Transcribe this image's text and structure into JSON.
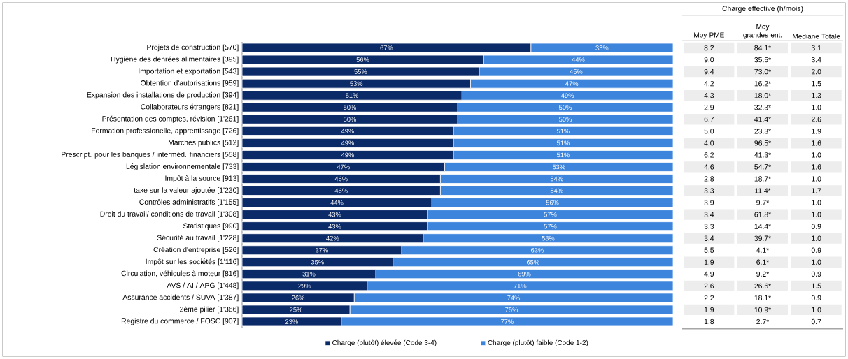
{
  "chart_data": [
    {
      "type": "bar",
      "orientation": "horizontal",
      "stacked": true,
      "legend": "bottom",
      "xlim": [
        0,
        100
      ],
      "categories": [
        "Projets de construction [570]",
        "Hygiène des denrées alimentaires [395]",
        "Importation et exportation [543]",
        "Obtention d'autorisations [959]",
        "Expansion des installations de production [394]",
        "Collaborateurs étrangers [821]",
        "Présentation des comptes, révision [1'261]",
        "Formation professionelle, apprentissage [726]",
        "Marchés publics [512]",
        "Prescript. pour les banques / interméd. financiers [558]",
        "Législation environnementale [733]",
        "Impôt à la source [913]",
        "taxe sur la valeur ajoutée [1'230]",
        "Contrôles administratifs [1'155]",
        "Droit du travail/ conditions de travail [1'308]",
        "Statistiques [990]",
        "Sécurité au travail [1'228]",
        "Création d'entreprise [526]",
        "Impôt sur les sociétés [1'116]",
        "Circulation, véhicules à moteur [816]",
        "AVS / AI / APG [1'448]",
        "Assurance accidents / SUVA [1'387]",
        "2ème pilier [1'366]",
        "Registre du commerce / FOSC [907]"
      ],
      "series": [
        {
          "name": "Charge (plutôt) élevée (Code 3-4)",
          "color": "#0b2a68",
          "values": [
            67,
            56,
            55,
            53,
            51,
            50,
            50,
            49,
            49,
            49,
            47,
            46,
            46,
            44,
            43,
            43,
            42,
            37,
            35,
            31,
            29,
            26,
            25,
            23
          ],
          "value_labels": [
            "67%",
            "56%",
            "55%",
            "53%",
            "51%",
            "50%",
            "50%",
            "49%",
            "49%",
            "49%",
            "47%",
            "46%",
            "46%",
            "44%",
            "43%",
            "43%",
            "42%",
            "37%",
            "35%",
            "31%",
            "29%",
            "26%",
            "25%",
            "23%"
          ]
        },
        {
          "name": "Charge (plutôt) faible (Code 1-2)",
          "color": "#3d84dc",
          "values": [
            33,
            44,
            45,
            47,
            49,
            50,
            50,
            51,
            51,
            51,
            53,
            54,
            54,
            56,
            57,
            57,
            58,
            63,
            65,
            69,
            71,
            74,
            75,
            77
          ],
          "value_labels": [
            "33%",
            "44%",
            "45%",
            "47%",
            "49%",
            "50%",
            "50%",
            "51%",
            "51%",
            "51%",
            "53%",
            "54%",
            "54%",
            "56%",
            "57%",
            "57%",
            "58%",
            "63%",
            "65%",
            "69%",
            "71%",
            "74%",
            "75%",
            "77%"
          ]
        }
      ]
    },
    {
      "type": "other",
      "title": "Charge effective (h/mois)",
      "categories": [
        "Moy PME",
        "Moy grandes ent.",
        "Médiane Totale"
      ],
      "cell_labels": [
        [
          "8.2",
          "84.1*",
          "3.1"
        ],
        [
          "9.0",
          "35.5*",
          "3.4"
        ],
        [
          "9.4",
          "73.0*",
          "2.0"
        ],
        [
          "4.2",
          "16.2*",
          "1.5"
        ],
        [
          "4.3",
          "18.0*",
          "1.3"
        ],
        [
          "2.9",
          "32.3*",
          "1.0"
        ],
        [
          "6.7",
          "41.4*",
          "2.6"
        ],
        [
          "5.0",
          "23.3*",
          "1.9"
        ],
        [
          "4.0",
          "96.5*",
          "1.6"
        ],
        [
          "6.2",
          "41.3*",
          "1.0"
        ],
        [
          "4.6",
          "54.7*",
          "1.6"
        ],
        [
          "2.8",
          "18.7*",
          "1.0"
        ],
        [
          "3.3",
          "11.4*",
          "1.7"
        ],
        [
          "3.9",
          "9.7*",
          "1.0"
        ],
        [
          "3.4",
          "61.8*",
          "1.0"
        ],
        [
          "3.3",
          "14.4*",
          "0.9"
        ],
        [
          "3.4",
          "39.7*",
          "1.0"
        ],
        [
          "5.5",
          "4.1*",
          "0.9"
        ],
        [
          "1.9",
          "6.1*",
          "1.0"
        ],
        [
          "4.9",
          "9.2*",
          "0.9"
        ],
        [
          "2.6",
          "26.6*",
          "1.5"
        ],
        [
          "2.2",
          "18.1*",
          "0.9"
        ],
        [
          "1.9",
          "10.9*",
          "1.0"
        ],
        [
          "1.8",
          "2.7*",
          "0.7"
        ]
      ]
    }
  ]
}
